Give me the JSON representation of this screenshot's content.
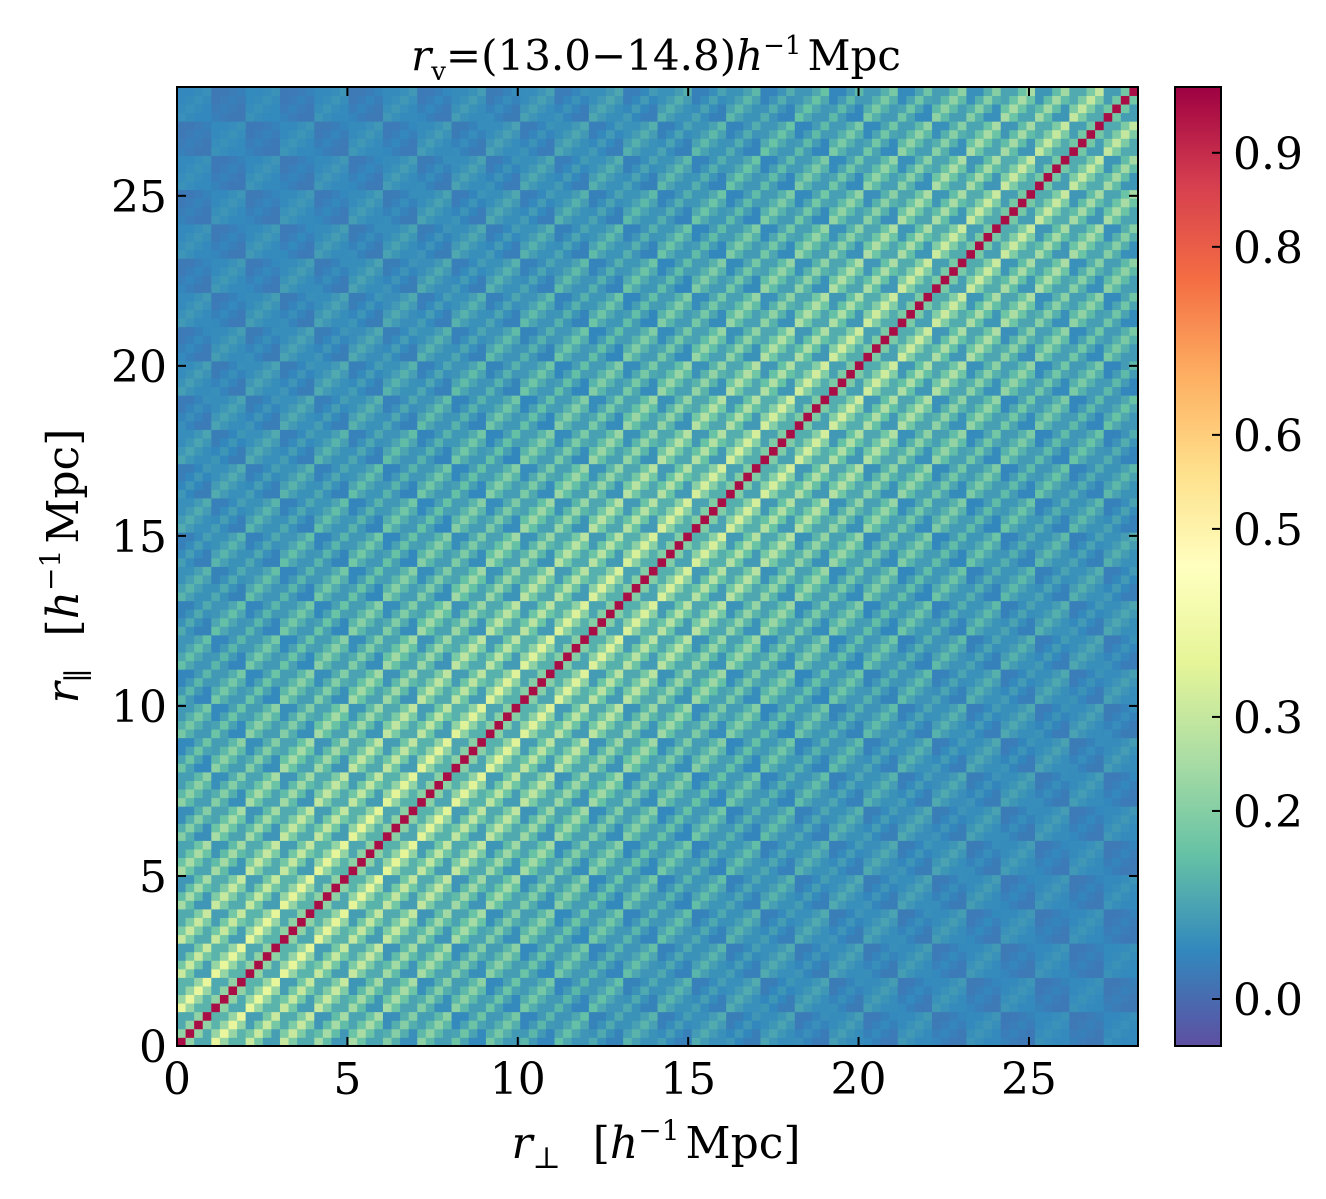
{
  "chart_data": {
    "type": "heatmap",
    "title": {
      "prefix": "r",
      "subscript": "v",
      "range": "=(13.0−14.8)",
      "unit_var": "h",
      "unit_exp": "−1",
      "unit": "Mpc"
    },
    "xlabel": {
      "var": "r",
      "sub": "⊥",
      "open": "[",
      "unit_var": "h",
      "unit_exp": "−1",
      "unit": "Mpc]"
    },
    "ylabel": {
      "var": "r",
      "sub": "∥",
      "open": "[",
      "unit_var": "h",
      "unit_exp": "−1",
      "unit": "Mpc]"
    },
    "xlim": [
      0,
      28.2
    ],
    "ylim": [
      0,
      28.2
    ],
    "xticks": [
      0,
      5,
      10,
      15,
      20,
      25
    ],
    "yticks": [
      0,
      5,
      10,
      15,
      20,
      25
    ],
    "xtick_labels": [
      "0",
      "5",
      "10",
      "15",
      "20",
      "25"
    ],
    "ytick_labels": [
      "0",
      "5",
      "10",
      "15",
      "20",
      "25"
    ],
    "grid": false,
    "colormap": "Spectral_r",
    "colorbar": {
      "range": [
        -0.05,
        0.97
      ],
      "ticks": [
        0.0,
        0.2,
        0.3,
        0.5,
        0.6,
        0.8,
        0.9
      ],
      "tick_labels": [
        "0.0",
        "0.2",
        "0.3",
        "0.5",
        "0.6",
        "0.8",
        "0.9"
      ]
    },
    "blocks_per_axis": 28,
    "cells_per_block": 4,
    "matrix_description": "correlation matrix of (r_perp, r_par) bins; diagonal = 1, blocks show diagonal stripe structure with values ~0.0-0.5"
  }
}
